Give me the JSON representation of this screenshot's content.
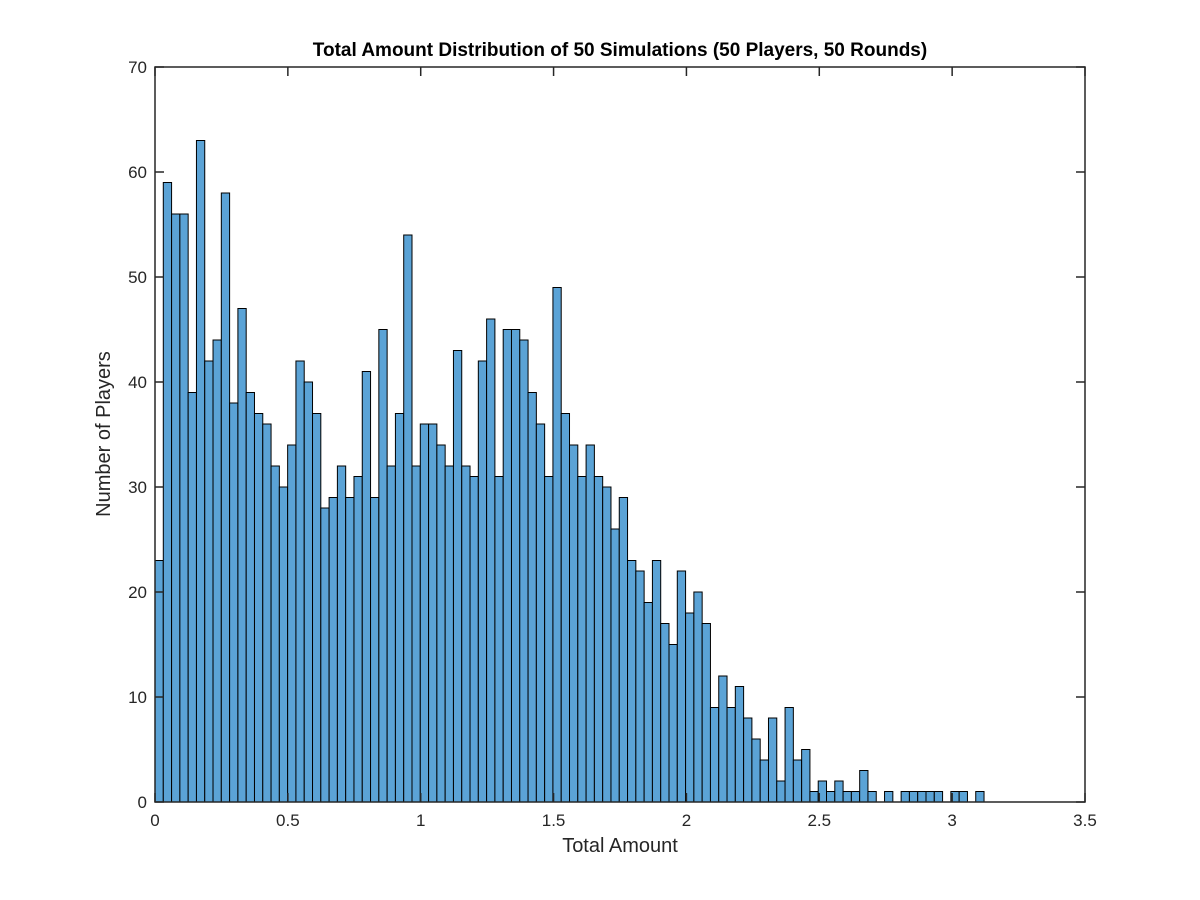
{
  "chart_data": {
    "type": "bar",
    "title": "Total Amount Distribution of 50 Simulations (50 Players, 50 Rounds)",
    "xlabel": "Total Amount",
    "ylabel": "Number of Players",
    "xlim": [
      0,
      3.5
    ],
    "ylim": [
      0,
      70
    ],
    "xticks": [
      0,
      0.5,
      1,
      1.5,
      2,
      2.5,
      3,
      3.5
    ],
    "xtick_labels": [
      "0",
      "0.5",
      "1",
      "1.5",
      "2",
      "2.5",
      "3",
      "3.5"
    ],
    "yticks": [
      0,
      10,
      20,
      30,
      40,
      50,
      60,
      70
    ],
    "ytick_labels": [
      "0",
      "10",
      "20",
      "30",
      "40",
      "50",
      "60",
      "70"
    ],
    "bin_width": 0.0312,
    "bins_start": 0,
    "values": [
      23,
      59,
      56,
      56,
      39,
      63,
      42,
      44,
      58,
      38,
      47,
      39,
      37,
      36,
      32,
      30,
      34,
      42,
      40,
      37,
      28,
      29,
      32,
      29,
      31,
      41,
      29,
      45,
      32,
      37,
      54,
      32,
      36,
      36,
      34,
      32,
      43,
      32,
      31,
      42,
      46,
      31,
      45,
      45,
      44,
      39,
      36,
      31,
      49,
      37,
      34,
      31,
      34,
      31,
      30,
      26,
      29,
      23,
      22,
      19,
      23,
      17,
      15,
      22,
      18,
      20,
      17,
      9,
      12,
      9,
      11,
      8,
      6,
      4,
      8,
      2,
      9,
      4,
      5,
      1,
      2,
      1,
      2,
      1,
      1,
      3,
      1,
      0,
      1,
      0,
      1,
      1,
      1,
      1,
      1,
      0,
      1,
      1,
      0,
      1
    ],
    "grid": false,
    "legend": "none",
    "bar_color": "#5ba3d6",
    "edge_color": "#000000",
    "axis_color": "#262626"
  }
}
